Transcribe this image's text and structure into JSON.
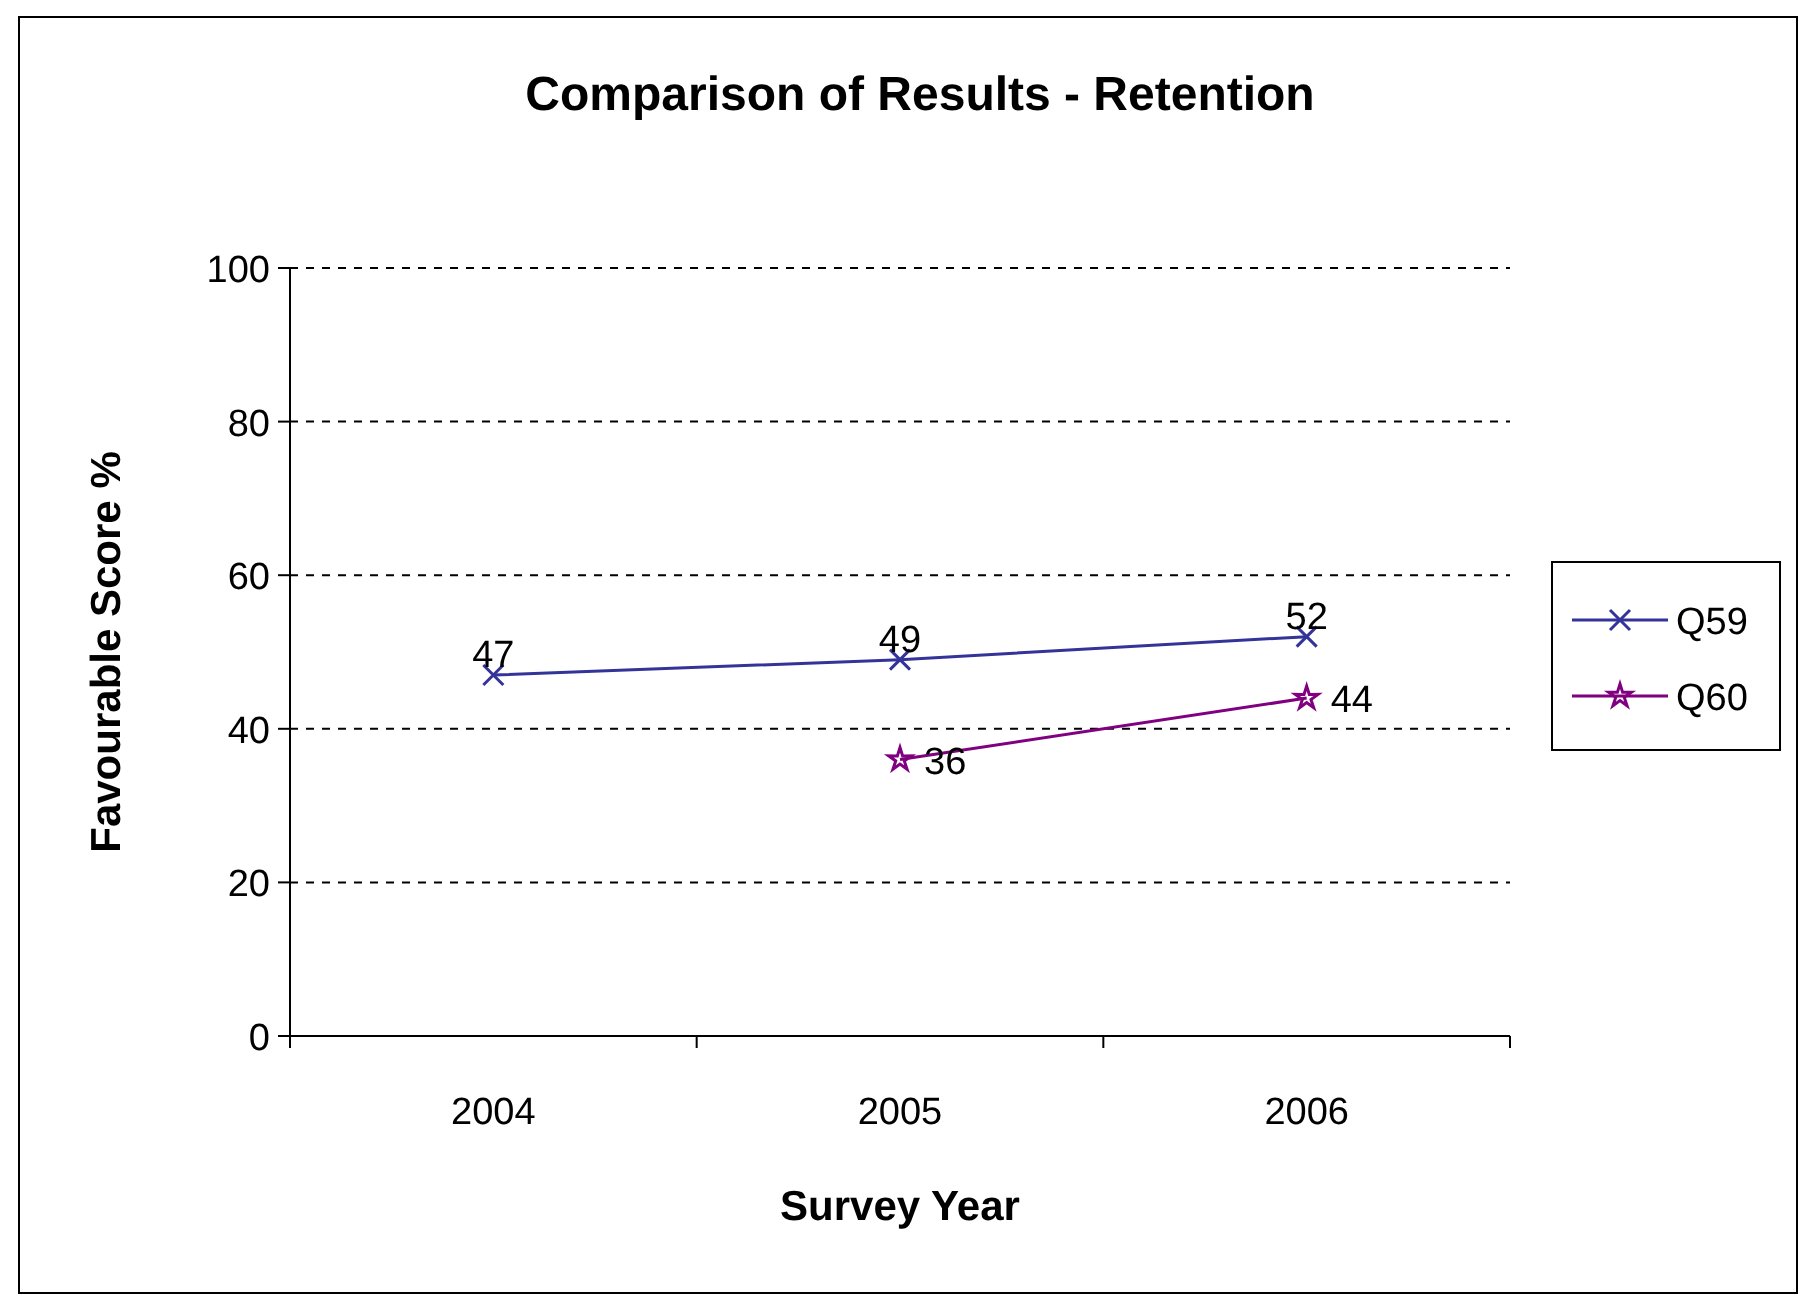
{
  "chart_data": {
    "type": "line",
    "title": "Comparison of Results - Retention",
    "xlabel": "Survey Year",
    "ylabel": "Favourable Score %",
    "categories": [
      "2004",
      "2005",
      "2006"
    ],
    "series": [
      {
        "name": "Q59",
        "color": "#333399",
        "values": [
          47,
          49,
          52
        ],
        "marker": "cross"
      },
      {
        "name": "Q60",
        "color": "#800080",
        "values": [
          null,
          36,
          44
        ],
        "marker": "star"
      }
    ],
    "ylim": [
      0,
      100
    ],
    "yticks": [
      0,
      20,
      40,
      60,
      80,
      100
    ],
    "grid": "y",
    "legend": "right",
    "data_labels": true,
    "line_style": "solid"
  }
}
